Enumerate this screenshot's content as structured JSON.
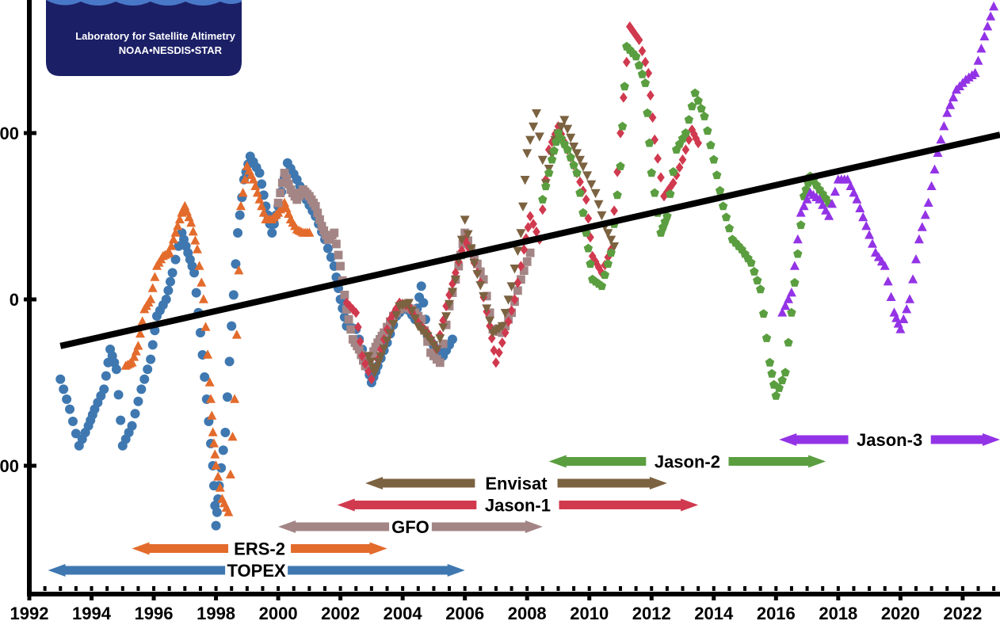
{
  "chart_data": {
    "type": "scatter",
    "title": "",
    "xlabel": "",
    "ylabel": "",
    "xlim": [
      1992,
      2023.2
    ],
    "ylim": [
      -900,
      900
    ],
    "grid": false,
    "legend": "none",
    "x_ticks": [
      {
        "value": 1992,
        "label": "1992"
      },
      {
        "value": 1994,
        "label": "1994"
      },
      {
        "value": 1996,
        "label": "1996"
      },
      {
        "value": 1998,
        "label": "1998"
      },
      {
        "value": 2000,
        "label": "2000"
      },
      {
        "value": 2002,
        "label": "2002"
      },
      {
        "value": 2004,
        "label": "2004"
      },
      {
        "value": 2006,
        "label": "2006"
      },
      {
        "value": 2008,
        "label": "2008"
      },
      {
        "value": 2010,
        "label": "2010"
      },
      {
        "value": 2012,
        "label": "2012"
      },
      {
        "value": 2014,
        "label": "2014"
      },
      {
        "value": 2016,
        "label": "2016"
      },
      {
        "value": 2018,
        "label": "2018"
      },
      {
        "value": 2020,
        "label": "2020"
      },
      {
        "value": 2022,
        "label": "2022"
      }
    ],
    "y_ticks": [
      {
        "value": 500,
        "label": "00"
      },
      {
        "value": 0,
        "label": "0"
      },
      {
        "value": -500,
        "label": "00"
      }
    ],
    "trend_line": {
      "x": [
        1993.0,
        2023.2
      ],
      "y": [
        -140,
        495
      ],
      "color": "#000000"
    },
    "series": [
      {
        "name": "TOPEX",
        "marker": "circle",
        "color": "#3f78b0",
        "points": [
          [
            1993.0,
            -240
          ],
          [
            1993.3,
            -330
          ],
          [
            1993.6,
            -440
          ],
          [
            1993.9,
            -380
          ],
          [
            1994.1,
            -330
          ],
          [
            1994.4,
            -270
          ],
          [
            1994.6,
            -150
          ],
          [
            1994.8,
            -210
          ],
          [
            1995.0,
            -440
          ],
          [
            1995.3,
            -380
          ],
          [
            1995.6,
            -270
          ],
          [
            1995.9,
            -180
          ],
          [
            1996.1,
            -50
          ],
          [
            1996.4,
            0
          ],
          [
            1996.6,
            80
          ],
          [
            1996.9,
            200
          ],
          [
            1997.1,
            140
          ],
          [
            1997.3,
            80
          ],
          [
            1997.5,
            -100
          ],
          [
            1997.7,
            -300
          ],
          [
            1997.9,
            -500
          ],
          [
            1998.0,
            -680
          ],
          [
            1998.1,
            -560
          ],
          [
            1998.3,
            -400
          ],
          [
            1998.5,
            -80
          ],
          [
            1998.7,
            200
          ],
          [
            1998.9,
            360
          ],
          [
            1999.1,
            430
          ],
          [
            1999.4,
            380
          ],
          [
            1999.6,
            280
          ],
          [
            1999.8,
            200
          ],
          [
            2000.0,
            280
          ],
          [
            2000.3,
            410
          ],
          [
            2000.6,
            360
          ],
          [
            2000.9,
            300
          ],
          [
            2001.2,
            250
          ],
          [
            2001.5,
            180
          ],
          [
            2001.8,
            100
          ],
          [
            2002.0,
            0
          ],
          [
            2002.2,
            -80
          ],
          [
            2002.5,
            -90
          ],
          [
            2002.8,
            -180
          ],
          [
            2003.0,
            -250
          ],
          [
            2003.2,
            -200
          ],
          [
            2003.5,
            -130
          ],
          [
            2003.8,
            -50
          ],
          [
            2004.1,
            -20
          ],
          [
            2004.4,
            -60
          ],
          [
            2004.6,
            40
          ],
          [
            2004.8,
            -110
          ],
          [
            2005.0,
            -140
          ],
          [
            2005.3,
            -170
          ],
          [
            2005.6,
            -120
          ]
        ]
      },
      {
        "name": "ERS-2",
        "marker": "triangle-up",
        "color": "#e36b2c",
        "points": [
          [
            1995.1,
            -200
          ],
          [
            1995.3,
            -190
          ],
          [
            1995.5,
            -140
          ],
          [
            1995.7,
            -30
          ],
          [
            1995.9,
            0
          ],
          [
            1996.1,
            100
          ],
          [
            1996.3,
            130
          ],
          [
            1996.5,
            140
          ],
          [
            1996.7,
            200
          ],
          [
            1996.9,
            260
          ],
          [
            1997.0,
            280
          ],
          [
            1997.2,
            230
          ],
          [
            1997.4,
            150
          ],
          [
            1997.6,
            0
          ],
          [
            1997.8,
            -250
          ],
          [
            1997.9,
            -400
          ],
          [
            1998.0,
            -500
          ],
          [
            1998.2,
            -600
          ],
          [
            1998.4,
            -640
          ],
          [
            1998.6,
            -300
          ],
          [
            1998.8,
            280
          ],
          [
            1999.0,
            400
          ],
          [
            1999.2,
            360
          ],
          [
            1999.4,
            300
          ],
          [
            1999.6,
            240
          ],
          [
            1999.8,
            240
          ],
          [
            2000.0,
            260
          ],
          [
            2000.2,
            290
          ],
          [
            2000.4,
            240
          ],
          [
            2000.6,
            210
          ],
          [
            2000.8,
            200
          ],
          [
            2001.0,
            200
          ]
        ]
      },
      {
        "name": "GFO",
        "marker": "square",
        "color": "#a48585",
        "points": [
          [
            2000.0,
            290
          ],
          [
            2000.2,
            380
          ],
          [
            2000.4,
            330
          ],
          [
            2000.6,
            300
          ],
          [
            2000.8,
            330
          ],
          [
            2001.0,
            310
          ],
          [
            2001.2,
            280
          ],
          [
            2001.4,
            220
          ],
          [
            2001.6,
            180
          ],
          [
            2001.8,
            200
          ],
          [
            2002.0,
            100
          ],
          [
            2002.2,
            -30
          ],
          [
            2002.4,
            -120
          ],
          [
            2002.6,
            -150
          ],
          [
            2002.8,
            -200
          ],
          [
            2003.0,
            -170
          ],
          [
            2003.2,
            -130
          ],
          [
            2003.4,
            -100
          ],
          [
            2003.7,
            -50
          ],
          [
            2004.0,
            -20
          ],
          [
            2004.3,
            -30
          ],
          [
            2004.6,
            -60
          ],
          [
            2004.9,
            -160
          ],
          [
            2005.2,
            -190
          ],
          [
            2005.5,
            -20
          ],
          [
            2005.8,
            100
          ],
          [
            2006.0,
            200
          ],
          [
            2006.3,
            130
          ],
          [
            2006.6,
            60
          ],
          [
            2006.9,
            -90
          ],
          [
            2007.2,
            -100
          ],
          [
            2007.5,
            -40
          ],
          [
            2007.8,
            60
          ],
          [
            2008.1,
            140
          ]
        ]
      },
      {
        "name": "Jason-1",
        "marker": "diamond",
        "color": "#d0394e",
        "points": [
          [
            2002.2,
            -10
          ],
          [
            2002.5,
            -40
          ],
          [
            2002.7,
            -170
          ],
          [
            2003.0,
            -240
          ],
          [
            2003.3,
            -150
          ],
          [
            2003.6,
            -60
          ],
          [
            2003.9,
            -10
          ],
          [
            2004.2,
            -20
          ],
          [
            2004.5,
            -70
          ],
          [
            2004.8,
            -100
          ],
          [
            2005.1,
            -150
          ],
          [
            2005.4,
            -20
          ],
          [
            2005.7,
            80
          ],
          [
            2006.0,
            180
          ],
          [
            2006.2,
            140
          ],
          [
            2006.5,
            50
          ],
          [
            2006.8,
            -80
          ],
          [
            2007.0,
            -190
          ],
          [
            2007.3,
            -100
          ],
          [
            2007.6,
            0
          ],
          [
            2007.9,
            150
          ],
          [
            2008.1,
            250
          ],
          [
            2008.4,
            180
          ],
          [
            2008.7,
            450
          ],
          [
            2009.0,
            520
          ],
          [
            2009.3,
            450
          ],
          [
            2009.6,
            380
          ],
          [
            2009.9,
            300
          ],
          [
            2010.1,
            130
          ],
          [
            2010.4,
            80
          ],
          [
            2010.7,
            150
          ],
          [
            2011.0,
            500
          ],
          [
            2011.3,
            820
          ],
          [
            2011.6,
            780
          ],
          [
            2011.9,
            680
          ],
          [
            2012.1,
            480
          ],
          [
            2012.4,
            310
          ],
          [
            2012.7,
            350
          ],
          [
            2013.0,
            420
          ],
          [
            2013.3,
            510
          ],
          [
            2013.5,
            470
          ]
        ]
      },
      {
        "name": "Envisat",
        "marker": "triangle-down",
        "color": "#7b6240",
        "points": [
          [
            2002.9,
            -170
          ],
          [
            2003.1,
            -220
          ],
          [
            2003.3,
            -170
          ],
          [
            2003.6,
            -100
          ],
          [
            2003.9,
            -20
          ],
          [
            2004.2,
            -10
          ],
          [
            2004.5,
            -80
          ],
          [
            2004.8,
            -110
          ],
          [
            2005.1,
            -150
          ],
          [
            2005.4,
            -50
          ],
          [
            2005.7,
            60
          ],
          [
            2006.0,
            240
          ],
          [
            2006.3,
            110
          ],
          [
            2006.6,
            10
          ],
          [
            2006.9,
            -100
          ],
          [
            2007.2,
            -80
          ],
          [
            2007.5,
            40
          ],
          [
            2007.8,
            200
          ],
          [
            2008.0,
            440
          ],
          [
            2008.3,
            560
          ],
          [
            2008.6,
            350
          ],
          [
            2008.9,
            480
          ],
          [
            2009.2,
            540
          ],
          [
            2009.5,
            460
          ],
          [
            2009.8,
            400
          ],
          [
            2010.2,
            320
          ],
          [
            2010.5,
            220
          ],
          [
            2010.8,
            160
          ]
        ]
      },
      {
        "name": "Jason-2",
        "marker": "pentagon",
        "color": "#5a9e40",
        "points": [
          [
            2008.5,
            300
          ],
          [
            2008.8,
            420
          ],
          [
            2009.0,
            500
          ],
          [
            2009.3,
            450
          ],
          [
            2009.6,
            380
          ],
          [
            2009.9,
            200
          ],
          [
            2010.1,
            60
          ],
          [
            2010.4,
            40
          ],
          [
            2010.7,
            140
          ],
          [
            2011.0,
            400
          ],
          [
            2011.2,
            760
          ],
          [
            2011.5,
            730
          ],
          [
            2011.8,
            650
          ],
          [
            2012.0,
            380
          ],
          [
            2012.3,
            200
          ],
          [
            2012.5,
            250
          ],
          [
            2012.8,
            450
          ],
          [
            2013.1,
            500
          ],
          [
            2013.4,
            620
          ],
          [
            2013.7,
            550
          ],
          [
            2014.0,
            420
          ],
          [
            2014.3,
            280
          ],
          [
            2014.6,
            180
          ],
          [
            2014.9,
            150
          ],
          [
            2015.2,
            110
          ],
          [
            2015.5,
            30
          ],
          [
            2015.8,
            -190
          ],
          [
            2016.0,
            -290
          ],
          [
            2016.3,
            -220
          ],
          [
            2016.6,
            50
          ],
          [
            2016.9,
            310
          ],
          [
            2017.1,
            370
          ],
          [
            2017.4,
            330
          ],
          [
            2017.7,
            290
          ]
        ]
      },
      {
        "name": "Jason-3",
        "marker": "triangle-up",
        "color": "#9333e6",
        "points": [
          [
            2016.2,
            -40
          ],
          [
            2016.5,
            20
          ],
          [
            2016.8,
            260
          ],
          [
            2017.1,
            320
          ],
          [
            2017.4,
            300
          ],
          [
            2017.7,
            250
          ],
          [
            2018.0,
            360
          ],
          [
            2018.3,
            360
          ],
          [
            2018.6,
            300
          ],
          [
            2018.9,
            220
          ],
          [
            2019.2,
            140
          ],
          [
            2019.5,
            100
          ],
          [
            2019.8,
            -40
          ],
          [
            2020.0,
            -90
          ],
          [
            2020.3,
            0
          ],
          [
            2020.6,
            180
          ],
          [
            2020.9,
            290
          ],
          [
            2021.2,
            440
          ],
          [
            2021.5,
            560
          ],
          [
            2021.8,
            630
          ],
          [
            2022.1,
            660
          ],
          [
            2022.4,
            680
          ],
          [
            2022.7,
            790
          ],
          [
            2023.0,
            880
          ]
        ]
      }
    ],
    "missions": [
      {
        "name": "TOPEX",
        "start": 1992.6,
        "end": 2006.0,
        "y_level": 1,
        "color": "#3f78b0"
      },
      {
        "name": "ERS-2",
        "start": 1995.3,
        "end": 2003.5,
        "y_level": 2,
        "color": "#e36b2c"
      },
      {
        "name": "GFO",
        "start": 2000.0,
        "end": 2008.5,
        "y_level": 3,
        "color": "#a48585"
      },
      {
        "name": "Jason-1",
        "start": 2001.9,
        "end": 2013.5,
        "y_level": 4,
        "color": "#d0394e"
      },
      {
        "name": "Envisat",
        "start": 2002.8,
        "end": 2012.5,
        "y_level": 5,
        "color": "#7b6240"
      },
      {
        "name": "Jason-2",
        "start": 2008.7,
        "end": 2017.6,
        "y_level": 6,
        "color": "#5a9e40"
      },
      {
        "name": "Jason-3",
        "start": 2016.1,
        "end": 2023.2,
        "y_level": 7,
        "color": "#9333e6"
      }
    ]
  },
  "logo": {
    "line1": "Laboratory for Satellite Altimetry",
    "line2": "NOAA•NESDIS•STAR",
    "bg_color": "#1b1f66"
  }
}
